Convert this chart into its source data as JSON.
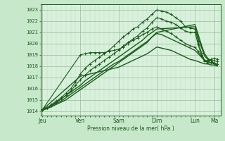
{
  "bg_color": "#c8e8cc",
  "plot_bg_color": "#d8f0dc",
  "grid_color_major": "#99bb99",
  "grid_color_minor": "#bbddbb",
  "line_color": "#1a5c1a",
  "ylabel_text": "Pression niveau de la mer( hPa )",
  "yticks": [
    1014,
    1015,
    1016,
    1017,
    1018,
    1019,
    1020,
    1021,
    1022,
    1023
  ],
  "ylim": [
    1013.6,
    1023.5
  ],
  "day_labels": [
    "Jeu",
    "Ven",
    "Sam",
    "Dim",
    "Lun",
    "Ma"
  ],
  "day_positions": [
    0,
    24,
    48,
    72,
    96,
    108
  ],
  "xlim": [
    -1,
    112
  ],
  "lines": [
    {
      "x": [
        0,
        3,
        6,
        9,
        12,
        15,
        18,
        21,
        24,
        27,
        30,
        33,
        36,
        39,
        42,
        45,
        48,
        51,
        54,
        57,
        60,
        63,
        66,
        69,
        72,
        75,
        78,
        81,
        84,
        87,
        90,
        93,
        96,
        98,
        100,
        102,
        104,
        106,
        108,
        110
      ],
      "y": [
        1014.1,
        1014.3,
        1014.6,
        1014.9,
        1015.2,
        1015.6,
        1016.0,
        1016.6,
        1017.3,
        1017.8,
        1018.2,
        1018.5,
        1018.8,
        1019.1,
        1019.4,
        1019.8,
        1020.2,
        1020.6,
        1020.9,
        1021.3,
        1021.5,
        1021.9,
        1022.2,
        1022.6,
        1023.0,
        1022.9,
        1022.8,
        1022.6,
        1022.3,
        1022.0,
        1021.5,
        1021.4,
        1021.3,
        1020.2,
        1019.2,
        1018.5,
        1018.5,
        1018.6,
        1018.7,
        1018.6
      ],
      "style": "marker",
      "lw": 0.8
    },
    {
      "x": [
        0,
        3,
        6,
        9,
        12,
        15,
        18,
        21,
        24,
        27,
        30,
        33,
        36,
        39,
        42,
        45,
        48,
        51,
        54,
        57,
        60,
        63,
        66,
        69,
        72,
        75,
        78,
        81,
        84,
        87,
        90,
        93,
        96,
        98,
        100,
        102,
        104,
        106,
        108,
        110
      ],
      "y": [
        1014.1,
        1014.3,
        1014.5,
        1014.8,
        1015.1,
        1015.4,
        1015.8,
        1016.3,
        1016.8,
        1017.2,
        1017.6,
        1017.9,
        1018.2,
        1018.5,
        1018.8,
        1019.1,
        1019.4,
        1019.8,
        1020.1,
        1020.4,
        1020.7,
        1021.1,
        1021.4,
        1021.9,
        1022.3,
        1022.2,
        1022.0,
        1021.9,
        1021.7,
        1021.4,
        1021.1,
        1021.0,
        1021.0,
        1019.9,
        1019.0,
        1018.4,
        1018.4,
        1018.5,
        1018.5,
        1018.4
      ],
      "style": "marker",
      "lw": 0.8
    },
    {
      "x": [
        0,
        24,
        27,
        30,
        33,
        36,
        39,
        42,
        45,
        48,
        51,
        54,
        57,
        60,
        63,
        66,
        69,
        72,
        75,
        78,
        81,
        84,
        87,
        90,
        93,
        96,
        98,
        100,
        102,
        104,
        106,
        108,
        110
      ],
      "y": [
        1014.1,
        1019.0,
        1019.1,
        1019.2,
        1019.2,
        1019.2,
        1019.2,
        1019.3,
        1019.4,
        1019.5,
        1019.7,
        1020.0,
        1020.3,
        1020.5,
        1020.8,
        1021.0,
        1021.3,
        1021.5,
        1021.3,
        1021.1,
        1020.9,
        1020.6,
        1020.3,
        1020.0,
        1019.8,
        1019.7,
        1019.3,
        1018.9,
        1018.5,
        1018.3,
        1018.3,
        1018.3,
        1018.2
      ],
      "style": "marker",
      "lw": 0.8
    },
    {
      "x": [
        0,
        3,
        6,
        9,
        12,
        15,
        18,
        21,
        24,
        27,
        30,
        33,
        36,
        39,
        42,
        45,
        48,
        51,
        54,
        57,
        60,
        63,
        66,
        69,
        72,
        96,
        98,
        100,
        102,
        104,
        106,
        108,
        110
      ],
      "y": [
        1014.1,
        1014.3,
        1014.5,
        1014.8,
        1015.1,
        1015.4,
        1015.7,
        1016.0,
        1016.3,
        1016.7,
        1017.0,
        1017.3,
        1017.6,
        1017.9,
        1018.2,
        1018.5,
        1018.8,
        1019.1,
        1019.4,
        1019.7,
        1020.0,
        1020.3,
        1020.7,
        1021.0,
        1021.3,
        1021.5,
        1020.5,
        1019.7,
        1018.9,
        1018.6,
        1018.5,
        1018.2,
        1018.1
      ],
      "style": "solid",
      "lw": 1.0
    },
    {
      "x": [
        0,
        3,
        6,
        9,
        12,
        15,
        18,
        21,
        24,
        27,
        30,
        33,
        36,
        39,
        42,
        45,
        48,
        51,
        54,
        57,
        60,
        63,
        66,
        69,
        72,
        96,
        98,
        100,
        102,
        104,
        106,
        108,
        110
      ],
      "y": [
        1014.1,
        1014.2,
        1014.4,
        1014.6,
        1014.8,
        1015.0,
        1015.3,
        1015.6,
        1015.9,
        1016.2,
        1016.5,
        1016.8,
        1017.1,
        1017.4,
        1017.7,
        1018.0,
        1018.3,
        1018.6,
        1018.9,
        1019.2,
        1019.5,
        1019.8,
        1020.1,
        1020.6,
        1021.0,
        1021.7,
        1020.8,
        1019.9,
        1019.1,
        1018.7,
        1018.5,
        1018.2,
        1018.1
      ],
      "style": "solid",
      "lw": 1.0
    },
    {
      "x": [
        0,
        3,
        6,
        9,
        12,
        15,
        18,
        21,
        24,
        27,
        30,
        33,
        36,
        39,
        42,
        45,
        48,
        51,
        54,
        57,
        60,
        63,
        66,
        69,
        72,
        75,
        78,
        81,
        84,
        87,
        90,
        93,
        96,
        98,
        100,
        102,
        104,
        106,
        108,
        110
      ],
      "y": [
        1014.1,
        1014.3,
        1014.5,
        1014.7,
        1014.9,
        1015.2,
        1015.5,
        1015.8,
        1016.1,
        1016.4,
        1016.7,
        1017.0,
        1017.3,
        1017.6,
        1017.9,
        1018.2,
        1018.4,
        1018.7,
        1019.0,
        1019.3,
        1019.6,
        1019.9,
        1020.2,
        1020.6,
        1020.9,
        1020.8,
        1020.6,
        1020.4,
        1020.2,
        1020.0,
        1019.8,
        1019.6,
        1019.4,
        1019.1,
        1018.8,
        1018.5,
        1018.4,
        1018.3,
        1018.2,
        1018.1
      ],
      "style": "solid",
      "lw": 1.0
    },
    {
      "x": [
        0,
        24,
        27,
        30,
        33,
        36,
        39,
        42,
        45,
        48,
        51,
        54,
        57,
        60,
        63,
        66,
        69,
        72,
        75,
        78,
        81,
        84,
        87,
        90,
        93,
        96,
        98,
        100,
        102,
        104,
        106,
        108,
        110
      ],
      "y": [
        1014.1,
        1017.1,
        1017.2,
        1017.3,
        1017.4,
        1017.5,
        1017.6,
        1017.7,
        1017.8,
        1017.9,
        1018.1,
        1018.3,
        1018.5,
        1018.7,
        1018.9,
        1019.1,
        1019.4,
        1019.7,
        1019.6,
        1019.5,
        1019.4,
        1019.2,
        1019.0,
        1018.8,
        1018.6,
        1018.5,
        1018.4,
        1018.3,
        1018.2,
        1018.2,
        1018.1,
        1018.1,
        1018.0
      ],
      "style": "solid",
      "lw": 1.0
    }
  ]
}
